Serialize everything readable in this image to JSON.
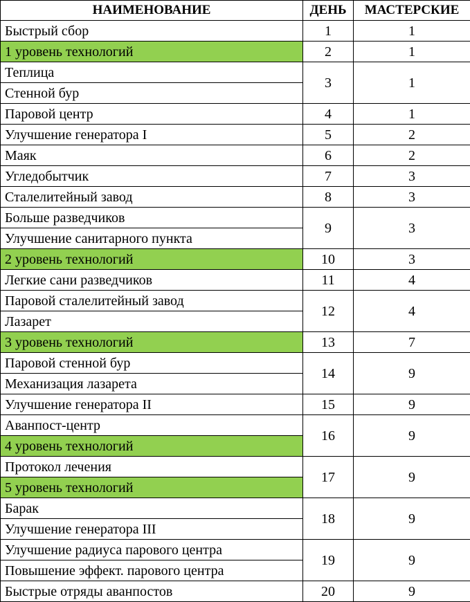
{
  "header": {
    "name": "НАИМЕНОВАНИЕ",
    "day": "ДЕНЬ",
    "workshops": "МАСТЕРСКИЕ"
  },
  "highlight_color": "#92d050",
  "rows": [
    {
      "items": [
        {
          "name": "Быстрый сбор",
          "highlight": false
        }
      ],
      "day": "1",
      "workshops": "1"
    },
    {
      "items": [
        {
          "name": "1 уровень технологий",
          "highlight": true
        }
      ],
      "day": "2",
      "workshops": "1"
    },
    {
      "items": [
        {
          "name": "Теплица",
          "highlight": false
        },
        {
          "name": "Стенной бур",
          "highlight": false
        }
      ],
      "day": "3",
      "workshops": "1"
    },
    {
      "items": [
        {
          "name": "Паровой центр",
          "highlight": false
        }
      ],
      "day": "4",
      "workshops": "1"
    },
    {
      "items": [
        {
          "name": "Улучшение генератора I",
          "highlight": false
        }
      ],
      "day": "5",
      "workshops": "2"
    },
    {
      "items": [
        {
          "name": "Маяк",
          "highlight": false
        }
      ],
      "day": "6",
      "workshops": "2"
    },
    {
      "items": [
        {
          "name": "Угледобытчик",
          "highlight": false
        }
      ],
      "day": "7",
      "workshops": "3"
    },
    {
      "items": [
        {
          "name": "Сталелитейный завод",
          "highlight": false
        }
      ],
      "day": "8",
      "workshops": "3"
    },
    {
      "items": [
        {
          "name": "Больше разведчиков",
          "highlight": false
        },
        {
          "name": "Улучшение санитарного пункта",
          "highlight": false
        }
      ],
      "day": "9",
      "workshops": "3"
    },
    {
      "items": [
        {
          "name": "2 уровень технологий",
          "highlight": true
        }
      ],
      "day": "10",
      "workshops": "3"
    },
    {
      "items": [
        {
          "name": "Легкие сани разведчиков",
          "highlight": false
        }
      ],
      "day": "11",
      "workshops": "4"
    },
    {
      "items": [
        {
          "name": "Паровой сталелитейный завод",
          "highlight": false
        },
        {
          "name": "Лазарет",
          "highlight": false
        }
      ],
      "day": "12",
      "workshops": "4"
    },
    {
      "items": [
        {
          "name": "3 уровень технологий",
          "highlight": true
        }
      ],
      "day": "13",
      "workshops": "7"
    },
    {
      "items": [
        {
          "name": "Паровой стенной бур",
          "highlight": false
        },
        {
          "name": "Механизация лазарета",
          "highlight": false
        }
      ],
      "day": "14",
      "workshops": "9"
    },
    {
      "items": [
        {
          "name": "Улучшение генератора II",
          "highlight": false
        }
      ],
      "day": "15",
      "workshops": "9"
    },
    {
      "items": [
        {
          "name": "Аванпост-центр",
          "highlight": false
        },
        {
          "name": "4 уровень технологий",
          "highlight": true
        }
      ],
      "day": "16",
      "workshops": "9"
    },
    {
      "items": [
        {
          "name": "Протокол лечения",
          "highlight": false
        },
        {
          "name": "5 уровень технологий",
          "highlight": true
        }
      ],
      "day": "17",
      "workshops": "9"
    },
    {
      "items": [
        {
          "name": "Барак",
          "highlight": false
        },
        {
          "name": "Улучшение генератора III",
          "highlight": false
        }
      ],
      "day": "18",
      "workshops": "9"
    },
    {
      "items": [
        {
          "name": "Улучшение радиуса парового центра",
          "highlight": false
        },
        {
          "name": "Повышение эффект. парового центра",
          "highlight": false
        }
      ],
      "day": "19",
      "workshops": "9"
    },
    {
      "items": [
        {
          "name": "Быстрые отряды аванпостов",
          "highlight": false
        }
      ],
      "day": "20",
      "workshops": "9"
    }
  ]
}
